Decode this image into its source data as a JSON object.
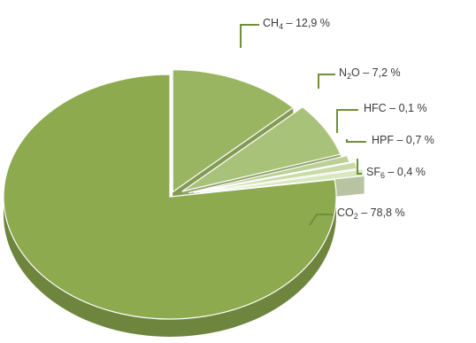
{
  "chart_data": {
    "type": "pie",
    "title": "",
    "unit": "%",
    "colors": {
      "CO2": "#8daa4f",
      "CH4": "#9ab562",
      "N2O": "#a9c27a",
      "HFC": "#bcd096",
      "HPF": "#c8dba6",
      "SF6": "#d8e7bd",
      "leader": "#6f8f3a"
    },
    "slices": [
      {
        "key": "CH4",
        "formula": "CH",
        "sub": "4",
        "value": 12.9,
        "value_text": "12,9 %"
      },
      {
        "key": "N2O",
        "formula": "N",
        "sub": "2",
        "formula_tail": "O",
        "value": 7.2,
        "value_text": "7,2 %"
      },
      {
        "key": "HFC",
        "formula": "HFC",
        "sub": "",
        "value": 0.1,
        "value_text": "0,1 %"
      },
      {
        "key": "HPF",
        "formula": "HPF",
        "sub": "",
        "value": 0.7,
        "value_text": "0,7 %"
      },
      {
        "key": "SF6",
        "formula": "SF",
        "sub": "6",
        "value": 0.4,
        "value_text": "0,4 %"
      },
      {
        "key": "CO2",
        "formula": "CO",
        "sub": "2",
        "value": 78.8,
        "value_text": "78,8 %"
      }
    ]
  }
}
